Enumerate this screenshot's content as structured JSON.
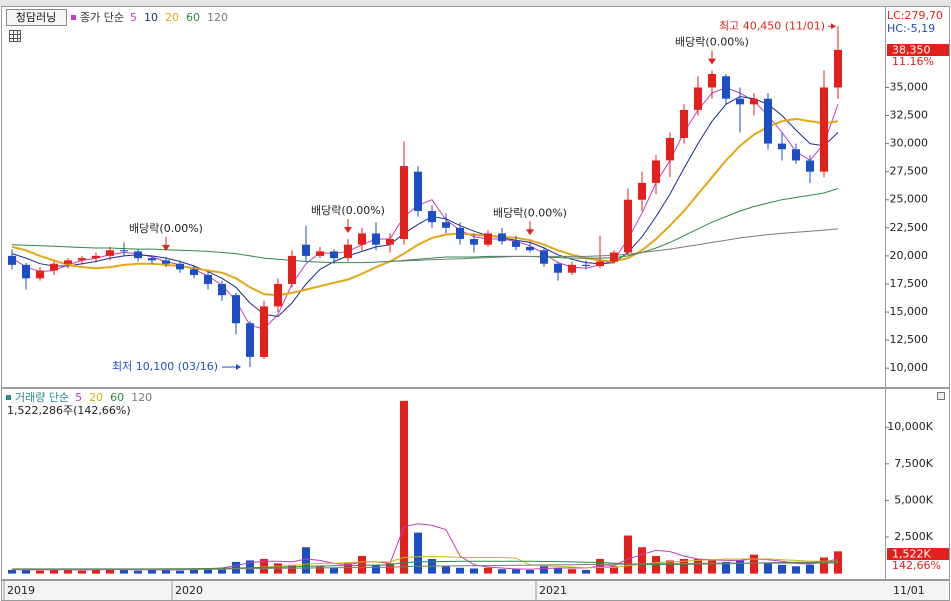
{
  "header": {
    "stock": "청담러닝"
  },
  "chart_data": [
    {
      "type": "candlestick",
      "legend_title": "종가 단순",
      "categories": [
        "2019",
        null,
        null,
        null,
        null,
        null,
        null,
        null,
        null,
        null,
        null,
        null,
        "2020",
        null,
        null,
        null,
        null,
        null,
        null,
        null,
        null,
        null,
        null,
        null,
        null,
        null,
        null,
        null,
        null,
        null,
        null,
        null,
        null,
        null,
        null,
        null,
        null,
        null,
        "2021",
        null,
        null,
        null,
        null,
        null,
        null,
        null,
        null,
        null,
        null,
        null,
        null,
        null,
        null,
        null,
        null,
        null,
        null,
        null,
        null,
        null
      ],
      "open": [
        20000,
        19200,
        18000,
        18700,
        19300,
        19600,
        19800,
        20000,
        20500,
        20400,
        19800,
        19600,
        19300,
        18800,
        18300,
        17500,
        16500,
        14000,
        11000,
        15500,
        17500,
        21000,
        20000,
        20400,
        19800,
        21000,
        22000,
        21000,
        21500,
        27500,
        24000,
        23000,
        22500,
        21500,
        21000,
        22000,
        21300,
        20800,
        20500,
        19300,
        18500,
        19200,
        19100,
        19500,
        20300,
        25000,
        26500,
        28500,
        30500,
        33000,
        35000,
        36000,
        34000,
        33500,
        34000,
        30000,
        29500,
        28500,
        27500,
        35000
      ],
      "high": [
        20600,
        19400,
        19000,
        19500,
        19800,
        20000,
        20300,
        20800,
        21200,
        20600,
        20000,
        19900,
        19600,
        19200,
        18600,
        17800,
        16700,
        14200,
        16000,
        18000,
        20500,
        22700,
        20800,
        20600,
        21500,
        22500,
        23000,
        22000,
        30200,
        28000,
        24500,
        23800,
        23000,
        22000,
        22300,
        22500,
        21800,
        21300,
        20800,
        19500,
        19500,
        19600,
        21800,
        20500,
        26000,
        27500,
        29000,
        31000,
        33500,
        36000,
        36500,
        36200,
        35000,
        34500,
        34500,
        31000,
        30000,
        29000,
        36500,
        40450
      ],
      "low": [
        18800,
        17000,
        17800,
        18300,
        18900,
        19200,
        19400,
        19600,
        20000,
        19500,
        19300,
        19000,
        18500,
        18000,
        17000,
        16000,
        13000,
        10100,
        10800,
        15000,
        17200,
        19500,
        19800,
        19300,
        19500,
        20500,
        20500,
        20300,
        21000,
        23500,
        22500,
        22000,
        21000,
        20300,
        20800,
        21000,
        20500,
        20300,
        19000,
        17800,
        18300,
        18800,
        18900,
        19300,
        20100,
        24000,
        25500,
        27000,
        30000,
        32500,
        34000,
        33500,
        31000,
        32500,
        29500,
        28500,
        28200,
        26500,
        27000,
        34000
      ],
      "close": [
        19200,
        18000,
        18700,
        19300,
        19600,
        19800,
        20000,
        20500,
        20400,
        19800,
        19600,
        19300,
        18800,
        18300,
        17500,
        16500,
        14000,
        11000,
        15500,
        17500,
        20000,
        20000,
        20400,
        19800,
        21000,
        22000,
        21000,
        21500,
        28000,
        24000,
        23000,
        22500,
        21500,
        21000,
        22000,
        21300,
        20800,
        20500,
        19300,
        18500,
        19200,
        19100,
        19500,
        20300,
        25000,
        26500,
        28500,
        30500,
        33000,
        35000,
        36200,
        34000,
        33500,
        34000,
        30000,
        29500,
        28500,
        27500,
        35000,
        38350
      ],
      "up_color": "#e3211c",
      "down_color": "#1d4fc4",
      "series": [
        {
          "name": "5",
          "color": "#c23cc2",
          "values": [
            19800,
            19000,
            18600,
            18700,
            19200,
            19600,
            19800,
            20100,
            20300,
            20200,
            19900,
            19500,
            19200,
            18800,
            18200,
            17400,
            16000,
            13800,
            13500,
            14800,
            17500,
            19300,
            20300,
            20200,
            20400,
            21000,
            21500,
            21500,
            23500,
            24500,
            25000,
            23200,
            22300,
            21700,
            21500,
            21500,
            21300,
            20900,
            20200,
            19400,
            19000,
            18900,
            19200,
            19600,
            21500,
            23800,
            26500,
            28500,
            31000,
            33000,
            34500,
            35000,
            34500,
            33800,
            32500,
            31000,
            29300,
            28500,
            30000,
            33500
          ]
        },
        {
          "name": "10",
          "color": "#1c2c8c",
          "values": [
            20200,
            19800,
            19300,
            19100,
            19100,
            19300,
            19500,
            19800,
            20000,
            20100,
            20000,
            19800,
            19500,
            19100,
            18600,
            18000,
            17200,
            15800,
            14800,
            14600,
            15800,
            17500,
            18800,
            19500,
            20000,
            20400,
            20800,
            21000,
            22000,
            22800,
            23500,
            23300,
            22700,
            22200,
            21800,
            21600,
            21400,
            21200,
            20700,
            20100,
            19700,
            19400,
            19300,
            19400,
            20300,
            21700,
            23500,
            25500,
            27800,
            30000,
            32000,
            33500,
            34200,
            34000,
            33500,
            32500,
            31200,
            30000,
            29800,
            31000
          ]
        },
        {
          "name": "20",
          "color": "#e6a614",
          "values": [
            20800,
            20500,
            20000,
            19600,
            19200,
            19000,
            18900,
            19000,
            19200,
            19300,
            19300,
            19200,
            19100,
            18900,
            18700,
            18500,
            18000,
            17200,
            16600,
            16500,
            16700,
            17000,
            17300,
            17600,
            17900,
            18400,
            19000,
            19500,
            20200,
            21000,
            21600,
            21900,
            22000,
            21900,
            21800,
            21700,
            21600,
            21400,
            21000,
            20500,
            20100,
            19800,
            19600,
            19500,
            19800,
            20500,
            21500,
            22700,
            24000,
            25500,
            27000,
            28500,
            29800,
            30800,
            31500,
            32000,
            32200,
            32000,
            31800,
            32000
          ]
        },
        {
          "name": "60",
          "color": "#2e8a48",
          "values": [
            21000,
            20950,
            20900,
            20850,
            20800,
            20750,
            20700,
            20700,
            20650,
            20600,
            20600,
            20550,
            20500,
            20450,
            20400,
            20300,
            20200,
            20000,
            19800,
            19700,
            19600,
            19500,
            19450,
            19400,
            19400,
            19400,
            19450,
            19500,
            19600,
            19700,
            19800,
            19900,
            19900,
            19900,
            19950,
            19950,
            19950,
            19950,
            19900,
            19850,
            19800,
            19800,
            19800,
            19850,
            20000,
            20300,
            20700,
            21200,
            21800,
            22400,
            23000,
            23500,
            24000,
            24400,
            24700,
            25000,
            25200,
            25400,
            25600,
            26000
          ]
        },
        {
          "name": "120",
          "color": "#7a7a7a",
          "values": [
            null,
            null,
            null,
            null,
            null,
            null,
            null,
            null,
            null,
            null,
            null,
            null,
            null,
            null,
            null,
            null,
            null,
            null,
            null,
            null,
            null,
            null,
            null,
            null,
            null,
            null,
            null,
            19500,
            19550,
            19600,
            19650,
            19700,
            19750,
            19800,
            19850,
            19900,
            19950,
            19950,
            19950,
            19950,
            19950,
            19950,
            20000,
            20050,
            20150,
            20300,
            20450,
            20600,
            20800,
            21000,
            21200,
            21400,
            21600,
            21750,
            21900,
            22000,
            22100,
            22200,
            22300,
            22400
          ]
        }
      ],
      "ylim": [
        8500,
        41900
      ],
      "yticks": [
        {
          "value": 10000,
          "label": "10,000"
        },
        {
          "value": 12500,
          "label": "12,500"
        },
        {
          "value": 15000,
          "label": "15,000"
        },
        {
          "value": 17500,
          "label": "17,500"
        },
        {
          "value": 20000,
          "label": "20,000"
        },
        {
          "value": 22500,
          "label": "22,500"
        },
        {
          "value": 25000,
          "label": "25,000"
        },
        {
          "value": 27500,
          "label": "27,500"
        },
        {
          "value": 30000,
          "label": "30,000"
        },
        {
          "value": 32500,
          "label": "32,500"
        },
        {
          "value": 35000,
          "label": "35,000"
        }
      ],
      "max_label": "최고 40,450 (11/01)",
      "min_label": "최저 10,100 (03/16)",
      "annotations": [
        "배당락(0.00%)",
        "배당락(0.00%)",
        "배당락(0.00%)",
        "배당락(0.00%)"
      ],
      "lc_label": "LC:279,70",
      "hc_label": "HC:-5,19",
      "last_price_label": "38,350",
      "change_label": "11.16%",
      "date_label": "11/01"
    },
    {
      "type": "bar",
      "legend_title": "거래량 단순",
      "info": "1,522,286주(142,66%)",
      "values": [
        250,
        300,
        200,
        250,
        300,
        200,
        250,
        350,
        250,
        200,
        300,
        250,
        200,
        300,
        350,
        400,
        800,
        900,
        1000,
        700,
        600,
        1800,
        500,
        400,
        700,
        1200,
        600,
        700,
        11800,
        2800,
        1000,
        500,
        400,
        350,
        400,
        300,
        300,
        250,
        500,
        400,
        300,
        250,
        1000,
        500,
        2600,
        1800,
        1200,
        900,
        1000,
        1000,
        900,
        800,
        900,
        1300,
        700,
        600,
        500,
        600,
        1100,
        1522
      ],
      "series": [
        {
          "name": "5",
          "color": "#c23cc2",
          "values": [
            260,
            260,
            250,
            260,
            260,
            250,
            270,
            280,
            270,
            270,
            270,
            250,
            260,
            280,
            320,
            380,
            550,
            750,
            850,
            850,
            800,
            1000,
            900,
            700,
            600,
            800,
            800,
            700,
            3200,
            3400,
            3300,
            3000,
            1200,
            600,
            450,
            380,
            320,
            300,
            350,
            380,
            380,
            380,
            500,
            550,
            1000,
            1300,
            1600,
            1500,
            1200,
            1000,
            950,
            900,
            900,
            1000,
            950,
            850,
            700,
            650,
            800,
            1000
          ]
        },
        {
          "name": "20",
          "color": "#c8b414",
          "values": [
            300,
            300,
            300,
            300,
            300,
            300,
            300,
            300,
            300,
            300,
            300,
            300,
            300,
            300,
            300,
            300,
            350,
            400,
            450,
            500,
            550,
            650,
            700,
            700,
            750,
            800,
            800,
            800,
            1100,
            1150,
            1150,
            1150,
            1100,
            1100,
            1100,
            1100,
            1050,
            600,
            550,
            500,
            450,
            400,
            420,
            420,
            550,
            650,
            750,
            800,
            850,
            900,
            950,
            1000,
            1000,
            1000,
            1000,
            950,
            900,
            850,
            850,
            850
          ]
        },
        {
          "name": "60",
          "color": "#2e8a48",
          "values": [
            320,
            320,
            320,
            320,
            320,
            320,
            320,
            320,
            320,
            320,
            320,
            330,
            330,
            340,
            350,
            360,
            380,
            400,
            420,
            440,
            460,
            500,
            520,
            530,
            540,
            560,
            580,
            600,
            750,
            800,
            820,
            830,
            840,
            850,
            850,
            850,
            850,
            840,
            830,
            820,
            800,
            780,
            760,
            720,
            650,
            620,
            620,
            630,
            640,
            650,
            660,
            680,
            700,
            720,
            740,
            760,
            770,
            780,
            790,
            800
          ]
        },
        {
          "name": "120",
          "color": "#7a7a7a",
          "values": [
            300,
            300,
            300,
            300,
            300,
            300,
            300,
            300,
            300,
            300,
            300,
            300,
            300,
            300,
            310,
            320,
            330,
            340,
            350,
            360,
            370,
            380,
            390,
            400,
            410,
            420,
            430,
            440,
            480,
            500,
            510,
            520,
            530,
            540,
            550,
            560,
            570,
            580,
            590,
            600,
            610,
            620,
            630,
            640,
            650,
            660,
            670,
            680,
            690,
            700,
            710,
            720,
            720,
            720,
            720,
            720,
            720,
            720,
            720,
            720
          ]
        }
      ],
      "ylim": [
        -300,
        12200
      ],
      "yticks": [
        {
          "value": 2500,
          "label": "2,500K"
        },
        {
          "value": 5000,
          "label": "5,000K"
        },
        {
          "value": 7500,
          "label": "7,500K"
        },
        {
          "value": 10000,
          "label": "10,000K"
        }
      ],
      "last_label": "1,522K",
      "pct_label": "142,66%"
    }
  ]
}
